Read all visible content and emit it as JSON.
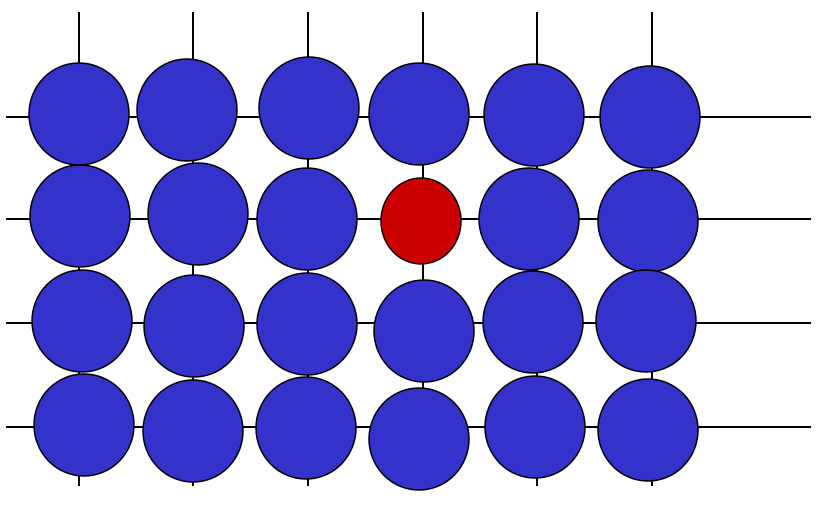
{
  "diagram": {
    "kind": "crystal-lattice-point-defect",
    "rows": 4,
    "columns": 6,
    "colors": {
      "host_atom": "#3333CC",
      "defect_atom": "#CC0000",
      "outline": "#000000",
      "background": "#FFFFFF"
    },
    "atoms": [
      {
        "row": 0,
        "col": 0,
        "type": "host"
      },
      {
        "row": 0,
        "col": 1,
        "type": "host"
      },
      {
        "row": 0,
        "col": 2,
        "type": "host"
      },
      {
        "row": 0,
        "col": 3,
        "type": "host"
      },
      {
        "row": 0,
        "col": 4,
        "type": "host"
      },
      {
        "row": 0,
        "col": 5,
        "type": "host"
      },
      {
        "row": 1,
        "col": 0,
        "type": "host"
      },
      {
        "row": 1,
        "col": 1,
        "type": "host"
      },
      {
        "row": 1,
        "col": 2,
        "type": "host"
      },
      {
        "row": 1,
        "col": 3,
        "type": "substitutional-impurity"
      },
      {
        "row": 1,
        "col": 4,
        "type": "host"
      },
      {
        "row": 1,
        "col": 5,
        "type": "host"
      },
      {
        "row": 2,
        "col": 0,
        "type": "host"
      },
      {
        "row": 2,
        "col": 1,
        "type": "host"
      },
      {
        "row": 2,
        "col": 2,
        "type": "host"
      },
      {
        "row": 2,
        "col": 3,
        "type": "host"
      },
      {
        "row": 2,
        "col": 4,
        "type": "host"
      },
      {
        "row": 2,
        "col": 5,
        "type": "host"
      },
      {
        "row": 3,
        "col": 0,
        "type": "host"
      },
      {
        "row": 3,
        "col": 1,
        "type": "host"
      },
      {
        "row": 3,
        "col": 2,
        "type": "host"
      },
      {
        "row": 3,
        "col": 3,
        "type": "host"
      },
      {
        "row": 3,
        "col": 4,
        "type": "host"
      },
      {
        "row": 3,
        "col": 5,
        "type": "host"
      }
    ]
  }
}
